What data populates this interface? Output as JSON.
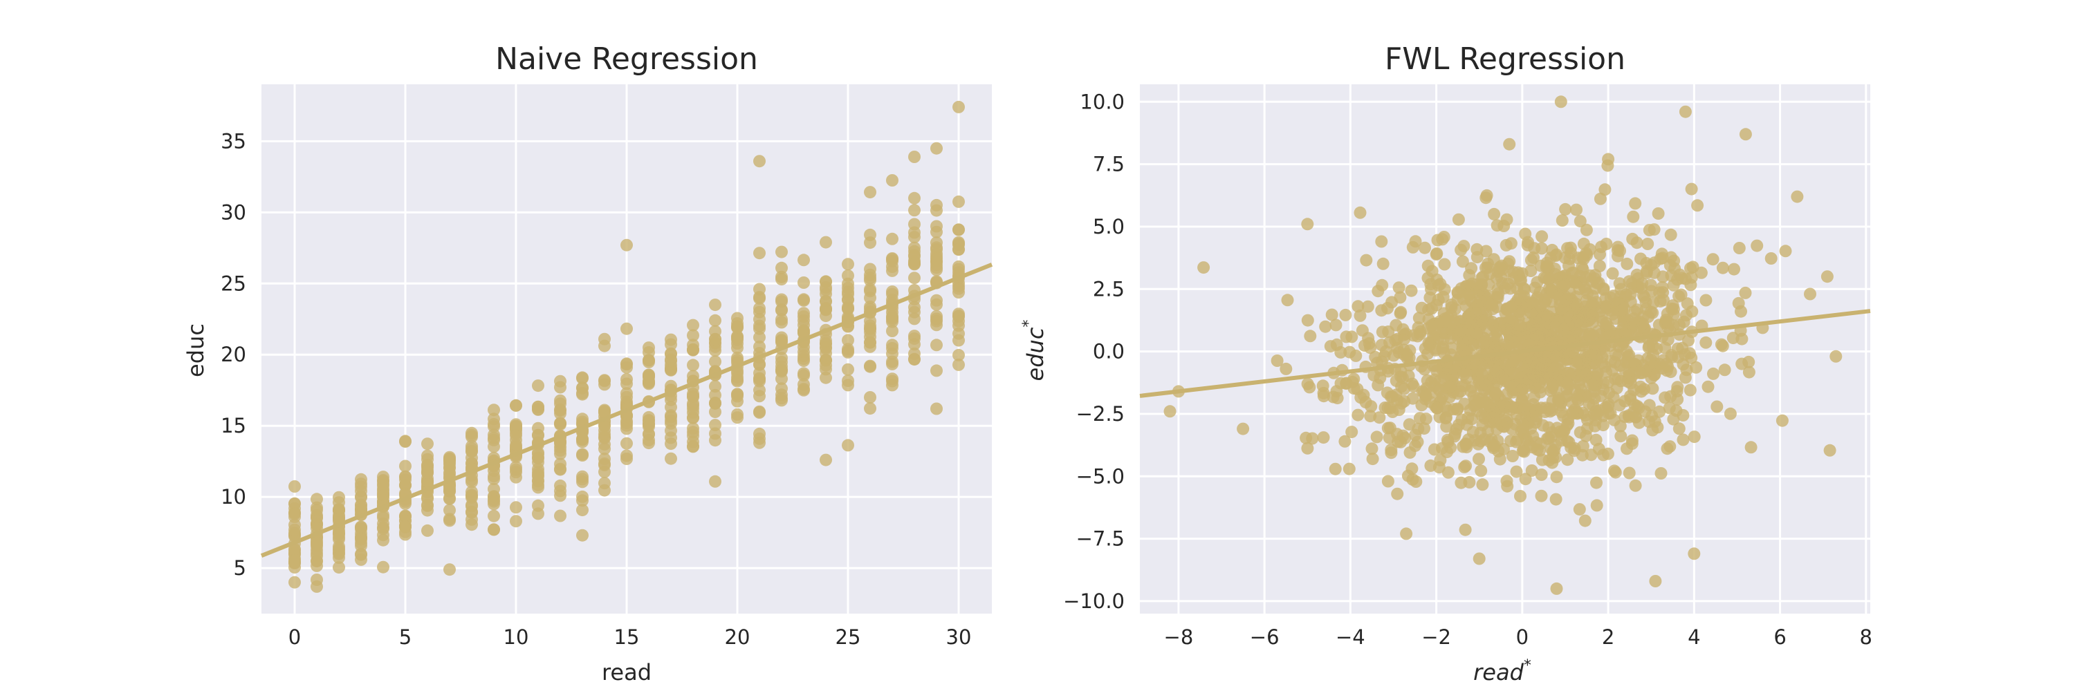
{
  "colors": {
    "panel_bg": "#eaeaf2",
    "grid": "#ffffff",
    "points": "#c9b26f",
    "line": "#c9b26f",
    "text": "#262626"
  },
  "chart_data": [
    {
      "type": "scatter",
      "title": "Naive Regression",
      "xlabel": "read",
      "ylabel": "educ",
      "xlim": [
        -1.5,
        31.5
      ],
      "ylim": [
        1.8,
        39.0
      ],
      "xticks": [
        0,
        5,
        10,
        15,
        20,
        25,
        30
      ],
      "yticks": [
        5,
        10,
        15,
        20,
        25,
        30,
        35
      ],
      "grid": true,
      "regression_line": {
        "slope": 0.62,
        "intercept": 6.8
      },
      "point_generation": {
        "x_values": "integers 0 to 30",
        "spread_sd": 1.4,
        "noise_sd": 1.2
      },
      "notable_points": [
        {
          "x": 30,
          "y": 37.4
        },
        {
          "x": 21,
          "y": 33.6
        },
        {
          "x": 29,
          "y": 34.5
        },
        {
          "x": 29,
          "y": 16.2
        },
        {
          "x": 26,
          "y": 17.0
        },
        {
          "x": 1,
          "y": 3.7
        },
        {
          "x": 0,
          "y": 4.0
        },
        {
          "x": 7,
          "y": 4.9
        },
        {
          "x": 13,
          "y": 7.3
        },
        {
          "x": 15,
          "y": 27.7
        },
        {
          "x": 24,
          "y": 12.6
        },
        {
          "x": 27,
          "y": 18.3
        },
        {
          "x": 30,
          "y": 21.0
        },
        {
          "x": 28,
          "y": 33.9
        }
      ]
    },
    {
      "type": "scatter",
      "title": "FWL Regression",
      "xlabel": "read",
      "ylabel": "educ",
      "label_superscript": "*",
      "xlim": [
        -8.9,
        8.1
      ],
      "ylim": [
        -10.5,
        10.7
      ],
      "xticks": [
        -8,
        -6,
        -4,
        -2,
        0,
        2,
        4,
        6,
        8
      ],
      "yticks": [
        -10.0,
        -7.5,
        -5.0,
        -2.5,
        0.0,
        2.5,
        5.0,
        7.5,
        10.0
      ],
      "tick_labels_y": [
        "−10.0",
        "−7.5",
        "−5.0",
        "−2.5",
        "0.0",
        "2.5",
        "5.0",
        "7.5",
        "10.0"
      ],
      "tick_labels_x": [
        "−8",
        "−6",
        "−4",
        "−2",
        "0",
        "2",
        "4",
        "6",
        "8"
      ],
      "grid": true,
      "regression_line": {
        "slope": 0.2,
        "intercept": 0.0
      },
      "point_generation": {
        "x_center": 0.3,
        "x_sd": 2.0,
        "y_center": 0.0,
        "y_sd": 2.2
      },
      "notable_points": [
        {
          "x": -8.2,
          "y": -2.4
        },
        {
          "x": -8.0,
          "y": -1.6
        },
        {
          "x": -6.5,
          "y": -3.1
        },
        {
          "x": 0.9,
          "y": 10.0
        },
        {
          "x": 3.8,
          "y": 9.6
        },
        {
          "x": 5.2,
          "y": 8.7
        },
        {
          "x": 0.8,
          "y": -9.5
        },
        {
          "x": 3.1,
          "y": -9.2
        },
        {
          "x": -1.0,
          "y": -8.3
        },
        {
          "x": 7.3,
          "y": -0.2
        },
        {
          "x": 7.1,
          "y": 3.0
        },
        {
          "x": 4.0,
          "y": -8.1
        },
        {
          "x": -5.0,
          "y": 5.1
        },
        {
          "x": -2.7,
          "y": -7.3
        },
        {
          "x": 6.7,
          "y": 2.3
        },
        {
          "x": 2.0,
          "y": 7.7
        },
        {
          "x": 6.4,
          "y": 6.2
        },
        {
          "x": -0.3,
          "y": 8.3
        }
      ]
    }
  ]
}
